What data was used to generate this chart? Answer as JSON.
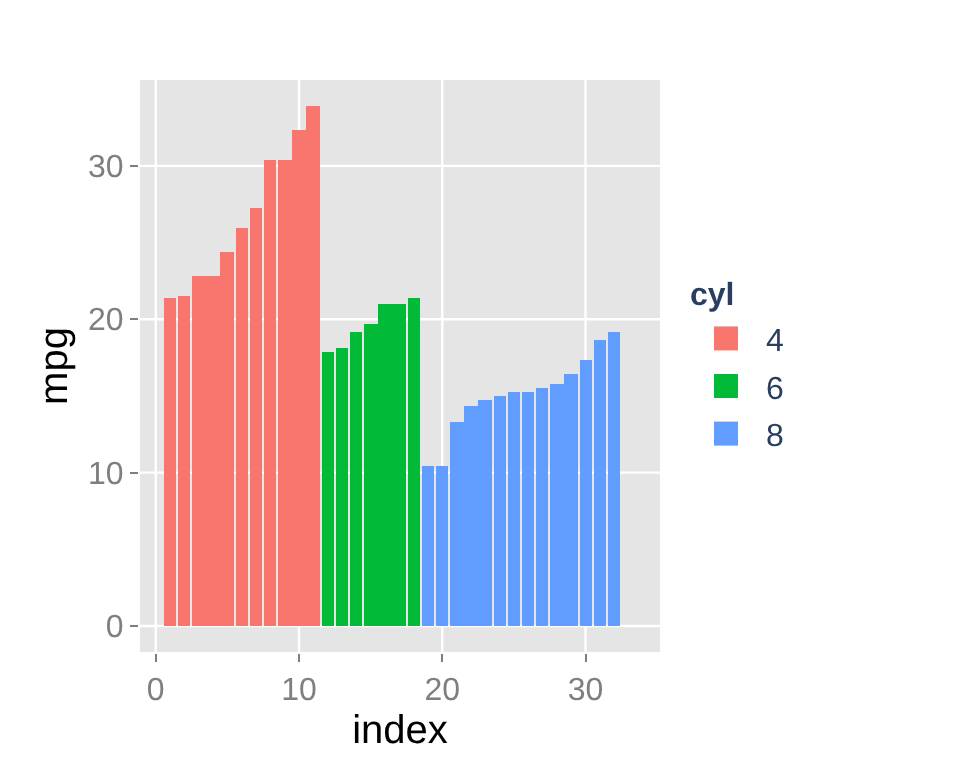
{
  "chart_data": {
    "type": "bar",
    "xlabel": "index",
    "ylabel": "mpg",
    "legend_title": "cyl",
    "series": [
      {
        "name": "4",
        "color": "#f8766d",
        "x": [
          1,
          2,
          3,
          4,
          5,
          6,
          7,
          8,
          9,
          10,
          11
        ],
        "values": [
          21.4,
          21.5,
          22.8,
          22.8,
          24.4,
          26.0,
          27.3,
          30.4,
          30.4,
          32.4,
          33.9
        ]
      },
      {
        "name": "6",
        "color": "#00ba38",
        "x": [
          12,
          13,
          14,
          15,
          16,
          17,
          18
        ],
        "values": [
          17.8,
          18.1,
          19.2,
          19.7,
          21.0,
          21.0,
          21.4
        ]
      },
      {
        "name": "8",
        "color": "#619cff",
        "x": [
          19,
          20,
          21,
          22,
          23,
          24,
          25,
          26,
          27,
          28,
          29,
          30,
          31,
          32
        ],
        "values": [
          10.4,
          10.4,
          13.3,
          14.3,
          14.7,
          15.0,
          15.2,
          15.2,
          15.5,
          15.8,
          16.4,
          17.3,
          18.7,
          19.2
        ]
      }
    ],
    "xlim": [
      -1.1,
      35.2
    ],
    "xticks": [
      0,
      10,
      20,
      30
    ],
    "ylim": [
      -1.7,
      35.6
    ],
    "yticks": [
      0,
      10,
      20,
      30
    ],
    "grid": true,
    "legend": "right"
  }
}
